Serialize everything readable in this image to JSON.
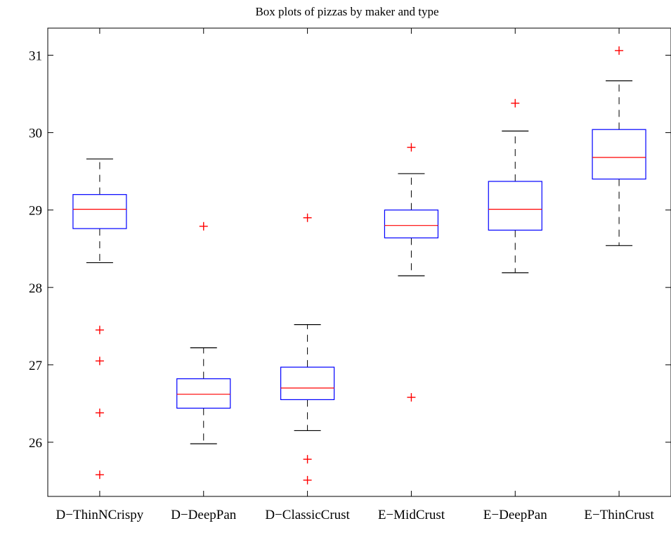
{
  "chart_data": {
    "type": "box",
    "title": "Box plots of pizzas by maker and type",
    "xlabel": "",
    "ylabel": "",
    "ylim": [
      25.3,
      31.35
    ],
    "yticks": [
      26,
      27,
      28,
      29,
      30,
      31
    ],
    "grid": false,
    "categories": [
      "D−ThinNCrispy",
      "D−DeepPan",
      "D−ClassicCrust",
      "E−MidCrust",
      "E−DeepPan",
      "E−ThinCrust"
    ],
    "boxes": [
      {
        "whisker_low": 28.32,
        "q1": 28.76,
        "median": 29.01,
        "q3": 29.2,
        "whisker_high": 29.66,
        "outliers": [
          27.45,
          27.05,
          26.38,
          25.58
        ]
      },
      {
        "whisker_low": 25.98,
        "q1": 26.44,
        "median": 26.62,
        "q3": 26.82,
        "whisker_high": 27.22,
        "outliers": [
          28.79
        ]
      },
      {
        "whisker_low": 26.15,
        "q1": 26.55,
        "median": 26.7,
        "q3": 26.97,
        "whisker_high": 27.52,
        "outliers": [
          28.9,
          25.78,
          25.51
        ]
      },
      {
        "whisker_low": 28.15,
        "q1": 28.64,
        "median": 28.8,
        "q3": 29.0,
        "whisker_high": 29.47,
        "outliers": [
          29.81,
          26.58
        ]
      },
      {
        "whisker_low": 28.19,
        "q1": 28.74,
        "median": 29.01,
        "q3": 29.37,
        "whisker_high": 30.02,
        "outliers": [
          30.38
        ]
      },
      {
        "whisker_low": 28.54,
        "q1": 29.4,
        "median": 29.68,
        "q3": 30.04,
        "whisker_high": 30.67,
        "outliers": [
          31.06
        ]
      }
    ],
    "colors": {
      "box": "#0000ff",
      "median": "#ff0000",
      "whisker": "#000000",
      "outlier": "#ff0000",
      "axes": "#000000"
    }
  }
}
